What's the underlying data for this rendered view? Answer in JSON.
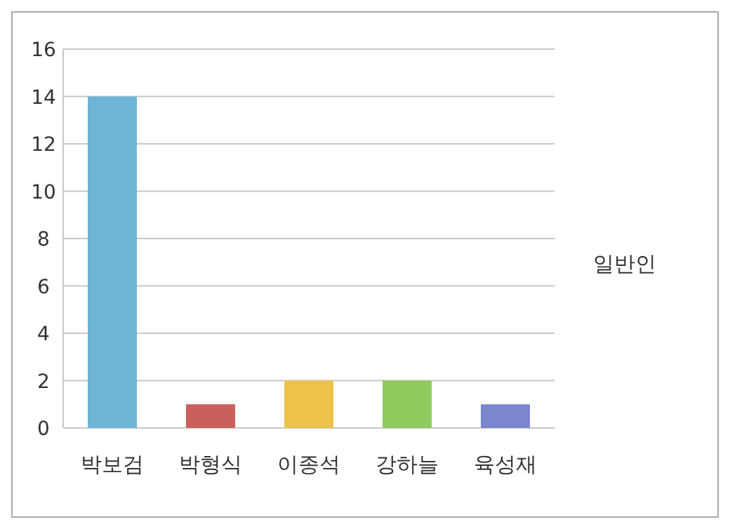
{
  "chart_data": {
    "type": "bar",
    "categories": [
      "박보검",
      "박형식",
      "이종석",
      "강하늘",
      "육성재"
    ],
    "values": [
      14,
      1,
      2,
      2,
      1
    ],
    "colors": [
      "#6db5d5",
      "#c9605c",
      "#eec24a",
      "#8ecb5f",
      "#7b86cf"
    ],
    "ylim": [
      0,
      16
    ],
    "yticks": [
      0,
      2,
      4,
      6,
      8,
      10,
      12,
      14,
      16
    ],
    "grid": "y",
    "annotations": [
      "일반인"
    ]
  }
}
